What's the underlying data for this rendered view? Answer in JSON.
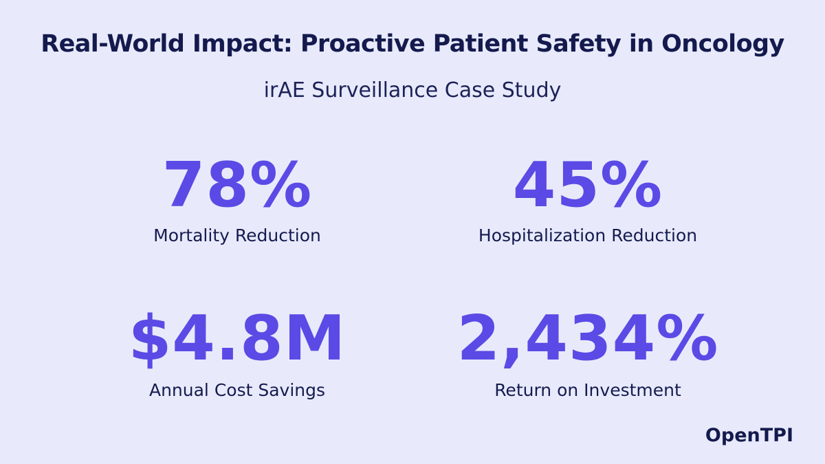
{
  "header": {
    "title": "Real-World Impact: Proactive Patient Safety in Oncology",
    "subtitle": "irAE Surveillance Case Study"
  },
  "metrics": [
    {
      "value": "78%",
      "label": "Mortality Reduction"
    },
    {
      "value": "45%",
      "label": "Hospitalization Reduction"
    },
    {
      "value": "$4.8M",
      "label": "Annual Cost Savings"
    },
    {
      "value": "2,434%",
      "label": "Return on Investment"
    }
  ],
  "brand": {
    "name": "OpenTPI"
  },
  "colors": {
    "background": "#e8eafb",
    "accent": "#5b4ae5",
    "text": "#141a4d"
  }
}
